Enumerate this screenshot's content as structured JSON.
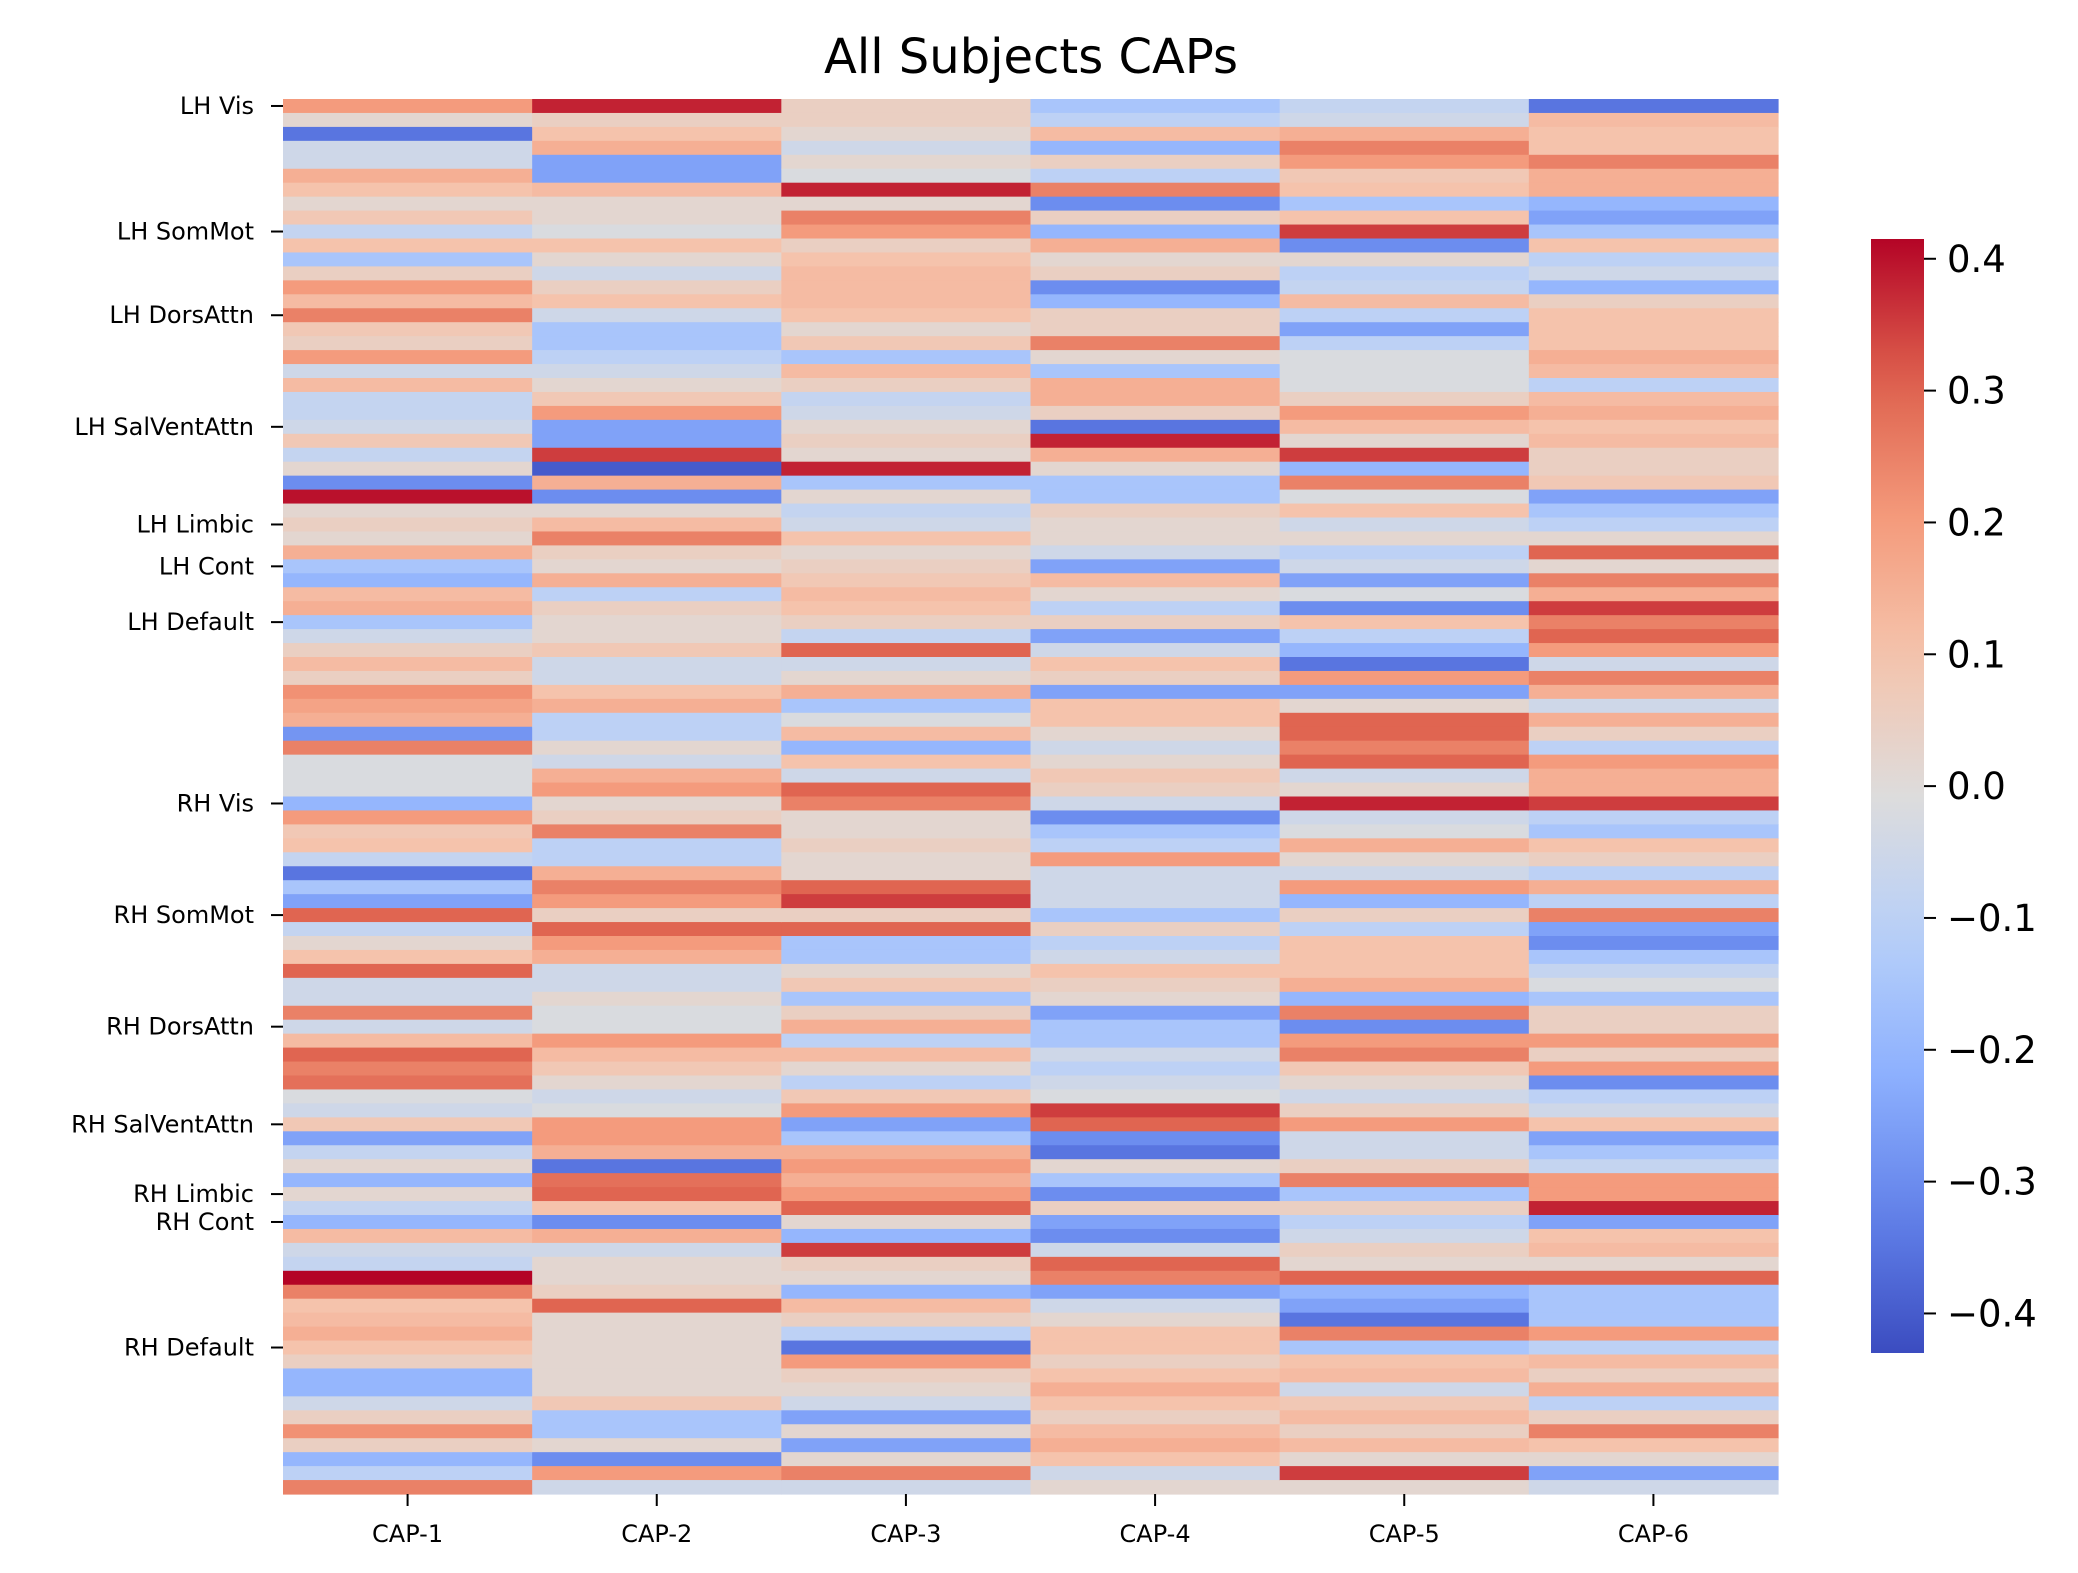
{
  "chart_data": {
    "type": "heatmap",
    "title": "All Subjects CAPs",
    "xlabel": "",
    "ylabel": "",
    "colormap": "coolwarm",
    "vmin": -0.43,
    "vmax": 0.415,
    "x_categories": [
      "CAP-1",
      "CAP-2",
      "CAP-3",
      "CAP-4",
      "CAP-5",
      "CAP-6"
    ],
    "y_tick_labels": [
      {
        "label": "LH Vis",
        "row": 0
      },
      {
        "label": "LH SomMot",
        "row": 9
      },
      {
        "label": "LH DorsAttn",
        "row": 15
      },
      {
        "label": "LH SalVentAttn",
        "row": 23
      },
      {
        "label": "LH Limbic",
        "row": 30
      },
      {
        "label": "LH Cont",
        "row": 33
      },
      {
        "label": "LH Default",
        "row": 37
      },
      {
        "label": "RH Vis",
        "row": 50
      },
      {
        "label": "RH SomMot",
        "row": 58
      },
      {
        "label": "RH DorsAttn",
        "row": 66
      },
      {
        "label": "RH SalVentAttn",
        "row": 73
      },
      {
        "label": "RH Limbic",
        "row": 78
      },
      {
        "label": "RH Cont",
        "row": 80
      },
      {
        "label": "RH Default",
        "row": 89
      }
    ],
    "colorbar": {
      "ticks": [
        0.4,
        0.3,
        0.2,
        0.1,
        0.0,
        -0.1,
        -0.2,
        -0.3,
        -0.4
      ],
      "tick_labels": [
        "0.4",
        "0.3",
        "0.2",
        "0.1",
        "0.0",
        "−0.1",
        "−0.2",
        "−0.3",
        "−0.4"
      ]
    },
    "rows": 100,
    "values_by_column": [
      [
        0.2,
        0.02,
        -0.35,
        -0.05,
        -0.05,
        0.15,
        0.1,
        0.02,
        0.08,
        -0.08,
        0.1,
        -0.15,
        0.05,
        0.2,
        0.12,
        0.25,
        0.08,
        0.05,
        0.2,
        -0.05,
        0.12,
        -0.08,
        -0.08,
        -0.05,
        0.08,
        -0.08,
        0.02,
        -0.3,
        0.4,
        0.02,
        0.05,
        0.02,
        0.15,
        -0.15,
        -0.2,
        0.12,
        0.15,
        -0.15,
        -0.05,
        0.05,
        0.12,
        0.05,
        0.22,
        0.18,
        0.15,
        -0.28,
        0.25,
        -0.02,
        -0.02,
        -0.02,
        -0.2,
        0.2,
        0.08,
        0.1,
        -0.08,
        -0.35,
        -0.15,
        -0.25,
        0.3,
        -0.08,
        0.02,
        0.1,
        0.3,
        -0.05,
        -0.05,
        0.25,
        -0.05,
        0.12,
        0.3,
        0.25,
        0.28,
        -0.02,
        -0.05,
        0.08,
        -0.25,
        -0.08,
        0.02,
        -0.2,
        0.02,
        -0.08,
        -0.2,
        0.12,
        -0.05,
        -0.08,
        0.45,
        0.25,
        0.1,
        0.12,
        0.15,
        0.1,
        0.05,
        -0.2,
        -0.2,
        -0.05,
        0.05,
        0.22,
        0.05,
        -0.2,
        -0.1,
        0.25
      ],
      [
        0.38,
        0.05,
        0.1,
        0.15,
        -0.25,
        -0.25,
        0.12,
        0.02,
        0.02,
        -0.02,
        0.1,
        0.02,
        -0.05,
        0.05,
        0.1,
        -0.05,
        -0.15,
        -0.15,
        -0.1,
        -0.05,
        0.02,
        0.08,
        0.2,
        -0.25,
        -0.25,
        0.35,
        -0.4,
        0.15,
        -0.3,
        0.02,
        0.12,
        0.25,
        0.05,
        0.02,
        0.15,
        -0.1,
        0.05,
        0.02,
        0.02,
        0.08,
        -0.05,
        -0.05,
        0.1,
        0.15,
        -0.1,
        -0.1,
        0.02,
        -0.05,
        0.15,
        0.2,
        0.02,
        0.05,
        0.25,
        -0.1,
        -0.1,
        0.15,
        0.25,
        0.2,
        0.05,
        0.3,
        0.2,
        0.15,
        -0.05,
        -0.05,
        0.02,
        -0.02,
        -0.02,
        0.2,
        0.12,
        0.08,
        0.02,
        -0.05,
        -0.02,
        0.2,
        0.2,
        0.15,
        -0.35,
        0.28,
        0.3,
        0.1,
        -0.3,
        0.15,
        -0.05,
        0.02,
        0.02,
        0.05,
        0.3,
        0.02,
        0.02,
        0.02,
        0.02,
        0.02,
        0.02,
        0.08,
        -0.15,
        -0.15,
        0.02,
        -0.3,
        0.2,
        -0.05
      ],
      [
        0.05,
        0.05,
        0.02,
        -0.05,
        0.02,
        -0.02,
        0.38,
        0.02,
        0.25,
        0.2,
        0.05,
        0.1,
        0.12,
        0.12,
        0.12,
        0.1,
        0.02,
        0.08,
        -0.15,
        0.12,
        0.05,
        -0.08,
        -0.05,
        0.02,
        0.05,
        0.02,
        0.38,
        -0.15,
        0.02,
        -0.08,
        -0.05,
        0.1,
        0.02,
        0.05,
        0.08,
        0.12,
        0.1,
        0.05,
        -0.08,
        0.3,
        -0.05,
        0.02,
        0.15,
        -0.15,
        -0.02,
        0.12,
        -0.2,
        0.1,
        -0.05,
        0.3,
        0.25,
        0.02,
        0.02,
        0.05,
        0.02,
        0.02,
        0.3,
        0.35,
        0.05,
        0.3,
        -0.15,
        -0.15,
        0.02,
        0.08,
        -0.15,
        0.05,
        0.15,
        -0.1,
        0.12,
        0.02,
        -0.1,
        0.08,
        0.2,
        -0.25,
        -0.15,
        0.15,
        0.2,
        0.15,
        0.2,
        0.3,
        0.02,
        -0.2,
        0.35,
        0.05,
        0.02,
        -0.2,
        0.12,
        0.05,
        -0.1,
        -0.35,
        0.2,
        0.05,
        0.02,
        -0.05,
        -0.25,
        0.02,
        -0.25,
        0.02,
        0.25,
        -0.05
      ],
      [
        -0.15,
        -0.1,
        0.12,
        -0.2,
        0.05,
        -0.1,
        0.25,
        -0.3,
        0.05,
        -0.2,
        0.15,
        0.02,
        0.05,
        -0.3,
        -0.2,
        0.05,
        0.05,
        0.25,
        0.02,
        -0.15,
        0.15,
        0.15,
        0.05,
        -0.35,
        0.38,
        0.15,
        0.02,
        -0.15,
        -0.15,
        0.05,
        0.02,
        0.02,
        -0.05,
        -0.25,
        0.12,
        0.02,
        -0.1,
        0.05,
        -0.25,
        -0.05,
        0.1,
        0.05,
        -0.25,
        0.1,
        0.1,
        0.02,
        -0.05,
        0.02,
        0.08,
        0.05,
        -0.05,
        -0.3,
        -0.15,
        -0.1,
        0.2,
        -0.05,
        -0.05,
        -0.05,
        -0.15,
        0.05,
        -0.1,
        -0.05,
        0.1,
        0.05,
        0.02,
        -0.25,
        -0.15,
        -0.15,
        -0.05,
        -0.1,
        -0.05,
        -0.02,
        0.35,
        0.3,
        -0.3,
        -0.35,
        0.02,
        -0.15,
        -0.3,
        0.05,
        -0.25,
        -0.3,
        -0.05,
        0.3,
        0.25,
        -0.25,
        -0.05,
        0.02,
        0.1,
        0.1,
        0.05,
        0.1,
        0.15,
        0.1,
        0.05,
        0.12,
        0.15,
        0.1,
        -0.05,
        0.02
      ],
      [
        -0.08,
        -0.05,
        0.15,
        0.25,
        0.2,
        0.08,
        0.1,
        -0.15,
        0.1,
        0.35,
        -0.3,
        0.02,
        -0.1,
        -0.08,
        0.12,
        -0.1,
        -0.25,
        -0.1,
        -0.02,
        -0.02,
        -0.02,
        0.05,
        0.2,
        0.12,
        0.02,
        0.35,
        -0.2,
        0.25,
        -0.02,
        0.1,
        -0.05,
        0.02,
        -0.1,
        -0.05,
        -0.25,
        -0.02,
        -0.3,
        0.1,
        -0.1,
        -0.2,
        -0.35,
        0.2,
        -0.25,
        0.02,
        0.3,
        0.3,
        0.25,
        0.3,
        -0.05,
        0.02,
        0.38,
        -0.05,
        -0.02,
        0.15,
        0.02,
        -0.05,
        0.2,
        -0.2,
        0.05,
        -0.1,
        0.1,
        0.1,
        0.1,
        0.15,
        -0.2,
        0.25,
        -0.3,
        0.2,
        0.25,
        0.08,
        0.02,
        -0.05,
        0.05,
        0.2,
        -0.05,
        -0.05,
        0.05,
        0.25,
        -0.15,
        0.05,
        -0.1,
        -0.05,
        0.05,
        0.02,
        0.3,
        -0.2,
        -0.25,
        -0.35,
        0.25,
        -0.15,
        0.1,
        0.12,
        -0.05,
        0.08,
        0.12,
        0.05,
        0.12,
        0.02,
        0.35,
        0.02
      ],
      [
        -0.35,
        0.12,
        0.1,
        0.1,
        0.25,
        0.15,
        0.15,
        -0.2,
        -0.25,
        -0.15,
        0.1,
        -0.1,
        -0.05,
        -0.2,
        0.05,
        0.1,
        0.1,
        0.1,
        0.15,
        0.12,
        -0.1,
        0.12,
        0.15,
        0.1,
        0.12,
        0.05,
        0.05,
        0.08,
        -0.25,
        -0.15,
        -0.1,
        0.02,
        0.3,
        0.02,
        0.25,
        0.15,
        0.35,
        0.25,
        0.3,
        0.2,
        -0.05,
        0.25,
        0.15,
        -0.05,
        0.15,
        0.05,
        -0.1,
        0.2,
        0.15,
        0.15,
        0.35,
        -0.1,
        -0.15,
        0.1,
        0.05,
        -0.1,
        0.15,
        -0.1,
        0.25,
        -0.25,
        -0.3,
        -0.15,
        -0.08,
        -0.02,
        -0.15,
        0.05,
        0.05,
        0.2,
        0.05,
        0.2,
        -0.3,
        -0.1,
        -0.05,
        0.1,
        -0.25,
        -0.15,
        -0.08,
        0.2,
        0.2,
        0.38,
        -0.25,
        0.1,
        0.12,
        0.02,
        0.3,
        -0.15,
        -0.15,
        -0.15,
        0.2,
        -0.1,
        0.12,
        0.05,
        0.15,
        -0.1,
        0.05,
        0.25,
        0.1,
        0.02,
        -0.25,
        -0.05
      ]
    ]
  }
}
